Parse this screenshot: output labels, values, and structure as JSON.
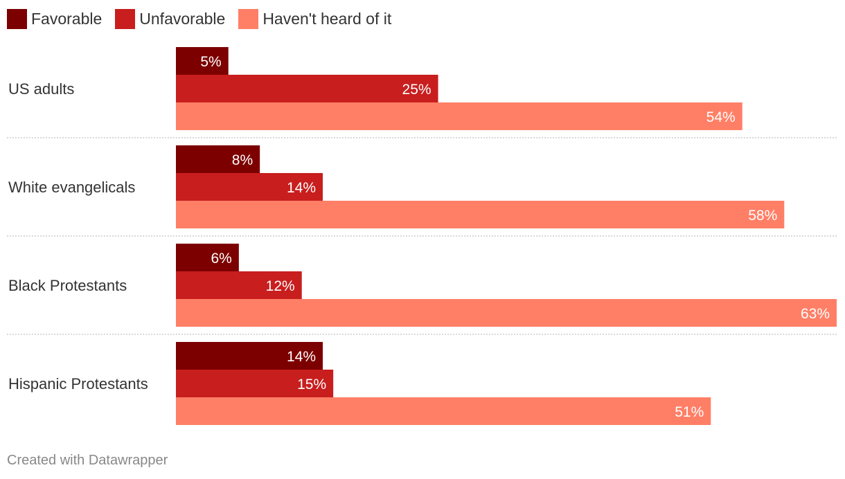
{
  "colors": {
    "favorable": "#7d0000",
    "unfavorable": "#c81e1e",
    "havent_heard": "#ff7f66",
    "divider": "#cccccc",
    "label_text": "#ffffff"
  },
  "legend": [
    {
      "label": "Favorable",
      "color": "#7d0000"
    },
    {
      "label": "Unfavorable",
      "color": "#c81e1e"
    },
    {
      "label": "Haven't heard of it",
      "color": "#ff7f66"
    }
  ],
  "footer": "Created with Datawrapper",
  "chart_data": {
    "type": "bar",
    "orientation": "horizontal",
    "grouped": true,
    "categories": [
      "US adults",
      "White evangelicals",
      "Black Protestants",
      "Hispanic Protestants"
    ],
    "series": [
      {
        "name": "Favorable",
        "values": [
          5,
          8,
          6,
          14
        ],
        "color": "#7d0000"
      },
      {
        "name": "Unfavorable",
        "values": [
          25,
          14,
          12,
          15
        ],
        "color": "#c81e1e"
      },
      {
        "name": "Haven't heard of it",
        "values": [
          54,
          58,
          63,
          51
        ],
        "color": "#ff7f66"
      }
    ],
    "value_suffix": "%",
    "xlim": [
      0,
      63
    ],
    "grid": false,
    "legend_position": "top-left"
  }
}
